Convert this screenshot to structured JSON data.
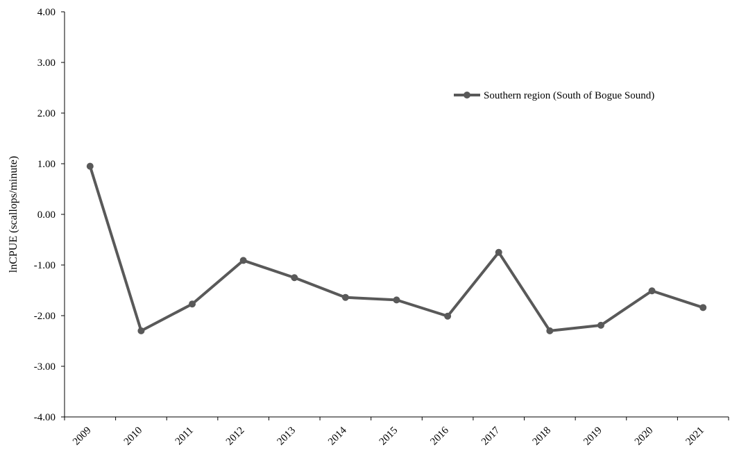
{
  "chart_data": {
    "type": "line",
    "title": "",
    "xlabel": "",
    "ylabel": "lnCPUE (scallops/minute)",
    "ylim": [
      -4,
      4
    ],
    "yticks": [
      "4.00",
      "3.00",
      "2.00",
      "1.00",
      "0.00",
      "-1.00",
      "-2.00",
      "-3.00",
      "-4.00"
    ],
    "categories": [
      "2009",
      "2010",
      "2011",
      "2012",
      "2013",
      "2014",
      "2015",
      "2016",
      "2017",
      "2018",
      "2019",
      "2020",
      "2021"
    ],
    "series": [
      {
        "name": "Southern region (South of Bogue Sound)",
        "color": "#595959",
        "values": [
          0.95,
          -2.3,
          -1.77,
          -0.91,
          -1.25,
          -1.64,
          -1.69,
          -2.01,
          -0.75,
          -2.3,
          -2.19,
          -1.51,
          -1.84
        ]
      }
    ],
    "grid": false,
    "legend_position": "top-right"
  }
}
